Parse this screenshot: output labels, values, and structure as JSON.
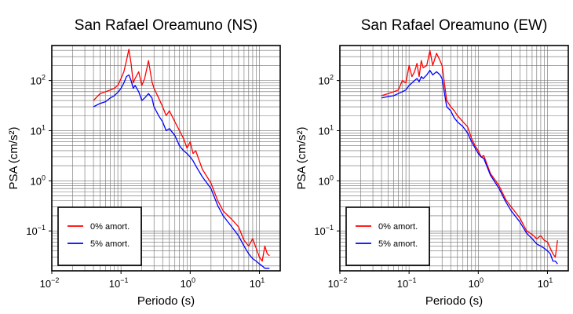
{
  "chart_data": [
    {
      "type": "line",
      "title": "San Rafael Oreamuno (NS)",
      "xlabel": "Periodo (s)",
      "ylabel": "PSA (cm/s²)",
      "x_scale": "log",
      "y_scale": "log",
      "xlim": [
        0.01,
        20
      ],
      "ylim": [
        0.016,
        500
      ],
      "grid": true,
      "legend_position": "bottom-left",
      "x_ticks": [
        {
          "base": "10",
          "exp": "−2"
        },
        {
          "base": "10",
          "exp": "−1"
        },
        {
          "base": "10",
          "exp": "0"
        },
        {
          "base": "10",
          "exp": "1"
        }
      ],
      "y_ticks": [
        {
          "base": "10",
          "exp": "−1"
        },
        {
          "base": "10",
          "exp": "0"
        },
        {
          "base": "10",
          "exp": "1"
        },
        {
          "base": "10",
          "exp": "2"
        }
      ],
      "series": [
        {
          "name": "0% amort.",
          "color": "#ff0000",
          "x": [
            0.04,
            0.05,
            0.06,
            0.07,
            0.08,
            0.09,
            0.1,
            0.11,
            0.12,
            0.13,
            0.14,
            0.15,
            0.16,
            0.18,
            0.2,
            0.22,
            0.25,
            0.28,
            0.3,
            0.35,
            0.4,
            0.45,
            0.5,
            0.6,
            0.7,
            0.8,
            0.9,
            1.0,
            1.1,
            1.2,
            1.5,
            2.0,
            2.5,
            3.0,
            4.0,
            5.0,
            6.0,
            7.0,
            8.0,
            9.0,
            10.0,
            11.0,
            12.0,
            13.0,
            14.0
          ],
          "y": [
            40,
            55,
            60,
            65,
            70,
            80,
            110,
            150,
            250,
            420,
            220,
            90,
            110,
            150,
            80,
            110,
            250,
            95,
            70,
            45,
            30,
            20,
            25,
            15,
            10,
            7,
            4.5,
            6,
            3.5,
            4,
            1.7,
            0.9,
            0.4,
            0.25,
            0.17,
            0.12,
            0.065,
            0.05,
            0.07,
            0.045,
            0.03,
            0.025,
            0.05,
            0.035,
            0.032
          ]
        },
        {
          "name": "5% amort.",
          "color": "#0000ff",
          "x": [
            0.04,
            0.05,
            0.06,
            0.07,
            0.08,
            0.09,
            0.1,
            0.11,
            0.12,
            0.13,
            0.14,
            0.15,
            0.16,
            0.18,
            0.2,
            0.22,
            0.25,
            0.28,
            0.3,
            0.35,
            0.4,
            0.45,
            0.5,
            0.6,
            0.7,
            0.8,
            0.9,
            1.0,
            1.1,
            1.2,
            1.5,
            2.0,
            2.5,
            3.0,
            4.0,
            5.0,
            6.0,
            7.0,
            8.0,
            9.0,
            10.0,
            11.0,
            12.0,
            13.0,
            14.0
          ],
          "y": [
            30,
            35,
            38,
            45,
            50,
            58,
            70,
            90,
            120,
            130,
            100,
            70,
            80,
            60,
            40,
            45,
            55,
            45,
            30,
            20,
            15,
            10,
            11,
            8,
            5,
            4,
            3.5,
            3,
            2.5,
            2,
            1.2,
            0.7,
            0.32,
            0.2,
            0.12,
            0.08,
            0.05,
            0.035,
            0.028,
            0.025,
            0.022,
            0.02,
            0.018,
            0.018,
            0.018
          ]
        }
      ]
    },
    {
      "type": "line",
      "title": "San Rafael Oreamuno (EW)",
      "xlabel": "Periodo (s)",
      "ylabel": "PSA (cm/s²)",
      "x_scale": "log",
      "y_scale": "log",
      "xlim": [
        0.01,
        20
      ],
      "ylim": [
        0.016,
        500
      ],
      "grid": true,
      "legend_position": "bottom-left",
      "x_ticks": [
        {
          "base": "10",
          "exp": "−2"
        },
        {
          "base": "10",
          "exp": "−1"
        },
        {
          "base": "10",
          "exp": "0"
        },
        {
          "base": "10",
          "exp": "1"
        }
      ],
      "y_ticks": [
        {
          "base": "10",
          "exp": "−1"
        },
        {
          "base": "10",
          "exp": "0"
        },
        {
          "base": "10",
          "exp": "1"
        },
        {
          "base": "10",
          "exp": "2"
        }
      ],
      "series": [
        {
          "name": "0% amort.",
          "color": "#ff0000",
          "x": [
            0.04,
            0.05,
            0.06,
            0.07,
            0.08,
            0.09,
            0.1,
            0.11,
            0.12,
            0.13,
            0.14,
            0.15,
            0.16,
            0.18,
            0.2,
            0.22,
            0.25,
            0.28,
            0.3,
            0.35,
            0.4,
            0.45,
            0.5,
            0.6,
            0.7,
            0.8,
            0.9,
            1.0,
            1.1,
            1.2,
            1.5,
            2.0,
            2.5,
            3.0,
            4.0,
            5.0,
            6.0,
            7.0,
            8.0,
            9.0,
            10.0,
            11.0,
            12.0,
            13.0,
            14.0
          ],
          "y": [
            50,
            55,
            60,
            65,
            100,
            90,
            200,
            120,
            150,
            220,
            120,
            250,
            180,
            200,
            400,
            200,
            350,
            250,
            200,
            40,
            30,
            25,
            20,
            15,
            12,
            7,
            5,
            4,
            3,
            3.2,
            1.4,
            0.8,
            0.42,
            0.3,
            0.18,
            0.1,
            0.085,
            0.07,
            0.08,
            0.065,
            0.06,
            0.045,
            0.035,
            0.03,
            0.065
          ]
        },
        {
          "name": "5% amort.",
          "color": "#0000ff",
          "x": [
            0.04,
            0.05,
            0.06,
            0.07,
            0.08,
            0.09,
            0.1,
            0.11,
            0.12,
            0.13,
            0.14,
            0.15,
            0.16,
            0.18,
            0.2,
            0.22,
            0.25,
            0.28,
            0.3,
            0.35,
            0.4,
            0.45,
            0.5,
            0.6,
            0.7,
            0.8,
            0.9,
            1.0,
            1.1,
            1.2,
            1.5,
            2.0,
            2.5,
            3.0,
            4.0,
            5.0,
            6.0,
            7.0,
            8.0,
            9.0,
            10.0,
            11.0,
            12.0,
            13.0,
            14.0
          ],
          "y": [
            45,
            48,
            50,
            55,
            60,
            65,
            80,
            90,
            100,
            110,
            95,
            120,
            110,
            130,
            160,
            130,
            150,
            130,
            110,
            30,
            25,
            18,
            15,
            12,
            9,
            6,
            4.5,
            3.5,
            3,
            2.8,
            1.3,
            0.7,
            0.38,
            0.25,
            0.15,
            0.09,
            0.07,
            0.055,
            0.05,
            0.045,
            0.04,
            0.035,
            0.025,
            0.025,
            0.022
          ]
        }
      ]
    }
  ]
}
